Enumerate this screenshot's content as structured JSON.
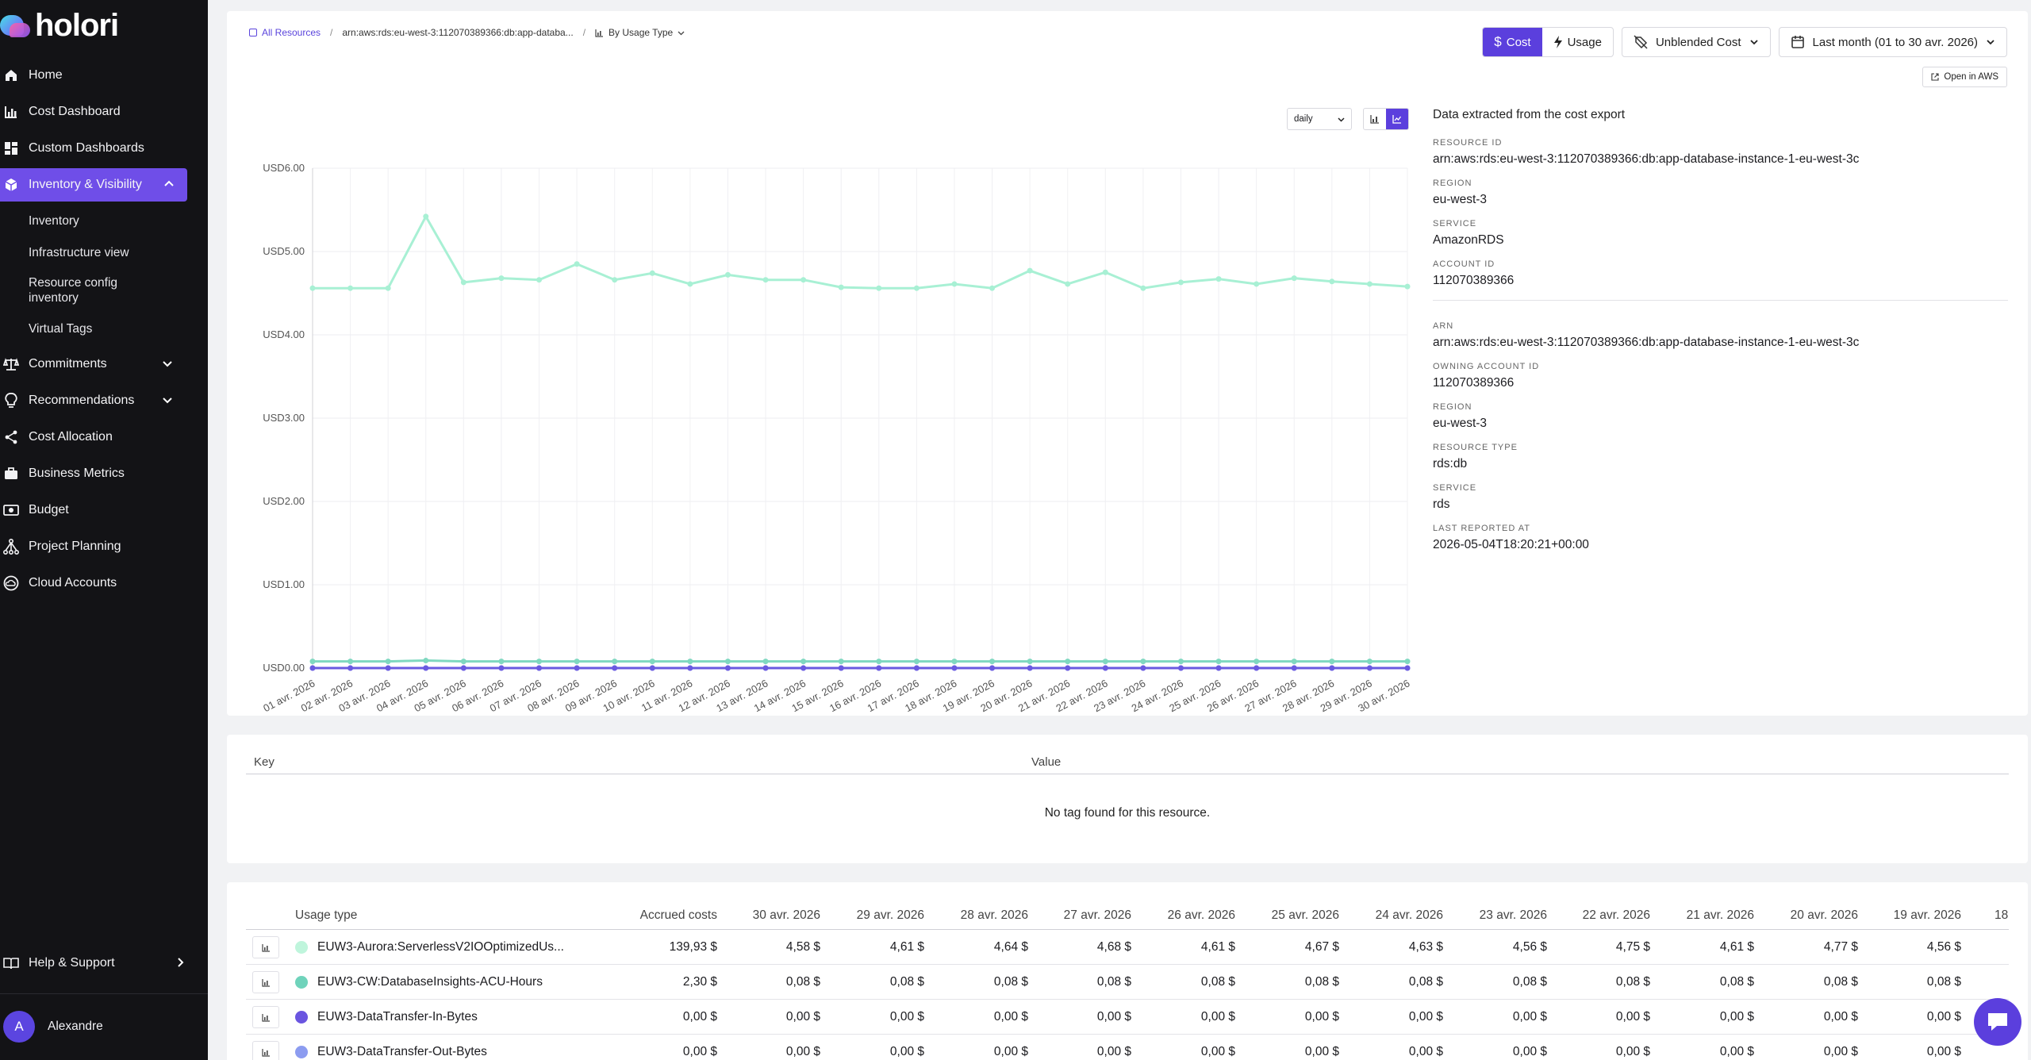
{
  "app": {
    "name": "holori"
  },
  "sidebar": {
    "items": [
      {
        "label": "Home",
        "icon": "home-icon"
      },
      {
        "label": "Cost Dashboard",
        "icon": "bar-chart-icon"
      },
      {
        "label": "Custom Dashboards",
        "icon": "dashboard-icon"
      },
      {
        "label": "Inventory & Visibility",
        "icon": "cube-icon",
        "active": true,
        "expanded": true
      },
      {
        "label": "Commitments",
        "icon": "scale-icon",
        "chevron": "down"
      },
      {
        "label": "Recommendations",
        "icon": "lightbulb-icon",
        "chevron": "down"
      },
      {
        "label": "Cost Allocation",
        "icon": "share-icon"
      },
      {
        "label": "Business Metrics",
        "icon": "briefcase-icon"
      },
      {
        "label": "Budget",
        "icon": "money-icon"
      },
      {
        "label": "Project Planning",
        "icon": "hierarchy-icon"
      },
      {
        "label": "Cloud Accounts",
        "icon": "cloud-icon"
      }
    ],
    "sub_items": [
      "Inventory",
      "Infrastructure view",
      "Resource config inventory",
      "Virtual Tags"
    ],
    "help_label": "Help & Support",
    "user": {
      "initial": "A",
      "name": "Alexandre"
    }
  },
  "breadcrumb": {
    "root": "All Resources",
    "resource": "arn:aws:rds:eu-west-3:112070389366:db:app-databa...",
    "group": "By Usage Type"
  },
  "controls": {
    "cost_label": "Cost",
    "usage_label": "Usage",
    "cost_type": "Unblended Cost",
    "date_range": "Last month (01 to 30 avr. 2026)",
    "open_aws": "Open in AWS",
    "granularity": "daily"
  },
  "details": {
    "headline": "Data extracted from the cost export",
    "group1": [
      {
        "key": "RESOURCE ID",
        "value": "arn:aws:rds:eu-west-3:112070389366:db:app-database-instance-1-eu-west-3c"
      },
      {
        "key": "REGION",
        "value": "eu-west-3"
      },
      {
        "key": "SERVICE",
        "value": "AmazonRDS"
      },
      {
        "key": "ACCOUNT ID",
        "value": "112070389366"
      }
    ],
    "group2": [
      {
        "key": "ARN",
        "value": "arn:aws:rds:eu-west-3:112070389366:db:app-database-instance-1-eu-west-3c"
      },
      {
        "key": "OWNING ACCOUNT ID",
        "value": "112070389366"
      },
      {
        "key": "REGION",
        "value": "eu-west-3"
      },
      {
        "key": "RESOURCE TYPE",
        "value": "rds:db"
      },
      {
        "key": "SERVICE",
        "value": "rds"
      },
      {
        "key": "LAST REPORTED AT",
        "value": "2026-05-04T18:20:21+00:00"
      }
    ]
  },
  "tags": {
    "key_header": "Key",
    "value_header": "Value",
    "empty": "No tag found for this resource."
  },
  "chart_data": {
    "type": "line",
    "ylim": [
      0,
      6
    ],
    "yticks": [
      "USD0.00",
      "USD1.00",
      "USD2.00",
      "USD3.00",
      "USD4.00",
      "USD5.00",
      "USD6.00"
    ],
    "x": [
      "01 avr. 2026",
      "02 avr. 2026",
      "03 avr. 2026",
      "04 avr. 2026",
      "05 avr. 2026",
      "06 avr. 2026",
      "07 avr. 2026",
      "08 avr. 2026",
      "09 avr. 2026",
      "10 avr. 2026",
      "11 avr. 2026",
      "12 avr. 2026",
      "13 avr. 2026",
      "14 avr. 2026",
      "15 avr. 2026",
      "16 avr. 2026",
      "17 avr. 2026",
      "18 avr. 2026",
      "19 avr. 2026",
      "20 avr. 2026",
      "21 avr. 2026",
      "22 avr. 2026",
      "23 avr. 2026",
      "24 avr. 2026",
      "25 avr. 2026",
      "26 avr. 2026",
      "27 avr. 2026",
      "28 avr. 2026",
      "29 avr. 2026",
      "30 avr. 2026"
    ],
    "series": [
      {
        "color": "#a8f0d4",
        "values": [
          4.56,
          4.56,
          4.56,
          5.42,
          4.63,
          4.68,
          4.66,
          4.85,
          4.66,
          4.74,
          4.61,
          4.72,
          4.66,
          4.66,
          4.57,
          4.56,
          4.56,
          4.61,
          4.56,
          4.77,
          4.61,
          4.75,
          4.56,
          4.63,
          4.67,
          4.61,
          4.68,
          4.64,
          4.61,
          4.58
        ]
      },
      {
        "color": "#7fd8c0",
        "values": [
          0.08,
          0.08,
          0.08,
          0.09,
          0.08,
          0.08,
          0.08,
          0.08,
          0.08,
          0.08,
          0.08,
          0.08,
          0.08,
          0.08,
          0.08,
          0.08,
          0.08,
          0.08,
          0.08,
          0.08,
          0.08,
          0.08,
          0.08,
          0.08,
          0.08,
          0.08,
          0.08,
          0.08,
          0.08,
          0.08
        ]
      },
      {
        "color": "#6a5ae0",
        "values": [
          0,
          0,
          0,
          0,
          0,
          0,
          0,
          0,
          0,
          0,
          0,
          0,
          0,
          0,
          0,
          0,
          0,
          0,
          0,
          0,
          0,
          0,
          0,
          0,
          0,
          0,
          0,
          0,
          0,
          0
        ]
      },
      {
        "color": "#8c9cf0",
        "values": [
          0,
          0,
          0,
          0,
          0,
          0,
          0,
          0,
          0,
          0,
          0,
          0,
          0,
          0,
          0,
          0,
          0,
          0,
          0,
          0,
          0,
          0,
          0,
          0,
          0,
          0,
          0,
          0,
          0,
          0
        ]
      }
    ]
  },
  "table": {
    "headers": [
      "Usage type",
      "Accrued costs",
      "30 avr. 2026",
      "29 avr. 2026",
      "28 avr. 2026",
      "27 avr. 2026",
      "26 avr. 2026",
      "25 avr. 2026",
      "24 avr. 2026",
      "23 avr. 2026",
      "22 avr. 2026",
      "21 avr. 2026",
      "20 avr. 2026",
      "19 avr. 2026",
      "18"
    ],
    "rows": [
      {
        "color": "#bff5dc",
        "name": "EUW3-Aurora:ServerlessV2IOOptimizedUs...",
        "values": [
          "139,93 $",
          "4,58 $",
          "4,61 $",
          "4,64 $",
          "4,68 $",
          "4,61 $",
          "4,67 $",
          "4,63 $",
          "4,56 $",
          "4,75 $",
          "4,61 $",
          "4,77 $",
          "4,56 $"
        ]
      },
      {
        "color": "#6fd3bb",
        "name": "EUW3-CW:DatabaseInsights-ACU-Hours",
        "values": [
          "2,30 $",
          "0,08 $",
          "0,08 $",
          "0,08 $",
          "0,08 $",
          "0,08 $",
          "0,08 $",
          "0,08 $",
          "0,08 $",
          "0,08 $",
          "0,08 $",
          "0,08 $",
          "0,08 $"
        ]
      },
      {
        "color": "#6a55e0",
        "name": "EUW3-DataTransfer-In-Bytes",
        "values": [
          "0,00 $",
          "0,00 $",
          "0,00 $",
          "0,00 $",
          "0,00 $",
          "0,00 $",
          "0,00 $",
          "0,00 $",
          "0,00 $",
          "0,00 $",
          "0,00 $",
          "0,00 $",
          "0,00 $"
        ]
      },
      {
        "color": "#8c9cf0",
        "name": "EUW3-DataTransfer-Out-Bytes",
        "values": [
          "0,00 $",
          "0,00 $",
          "0,00 $",
          "0,00 $",
          "0,00 $",
          "0,00 $",
          "0,00 $",
          "0,00 $",
          "0,00 $",
          "0,00 $",
          "0,00 $",
          "0,00 $",
          "0,00 $"
        ]
      }
    ]
  }
}
